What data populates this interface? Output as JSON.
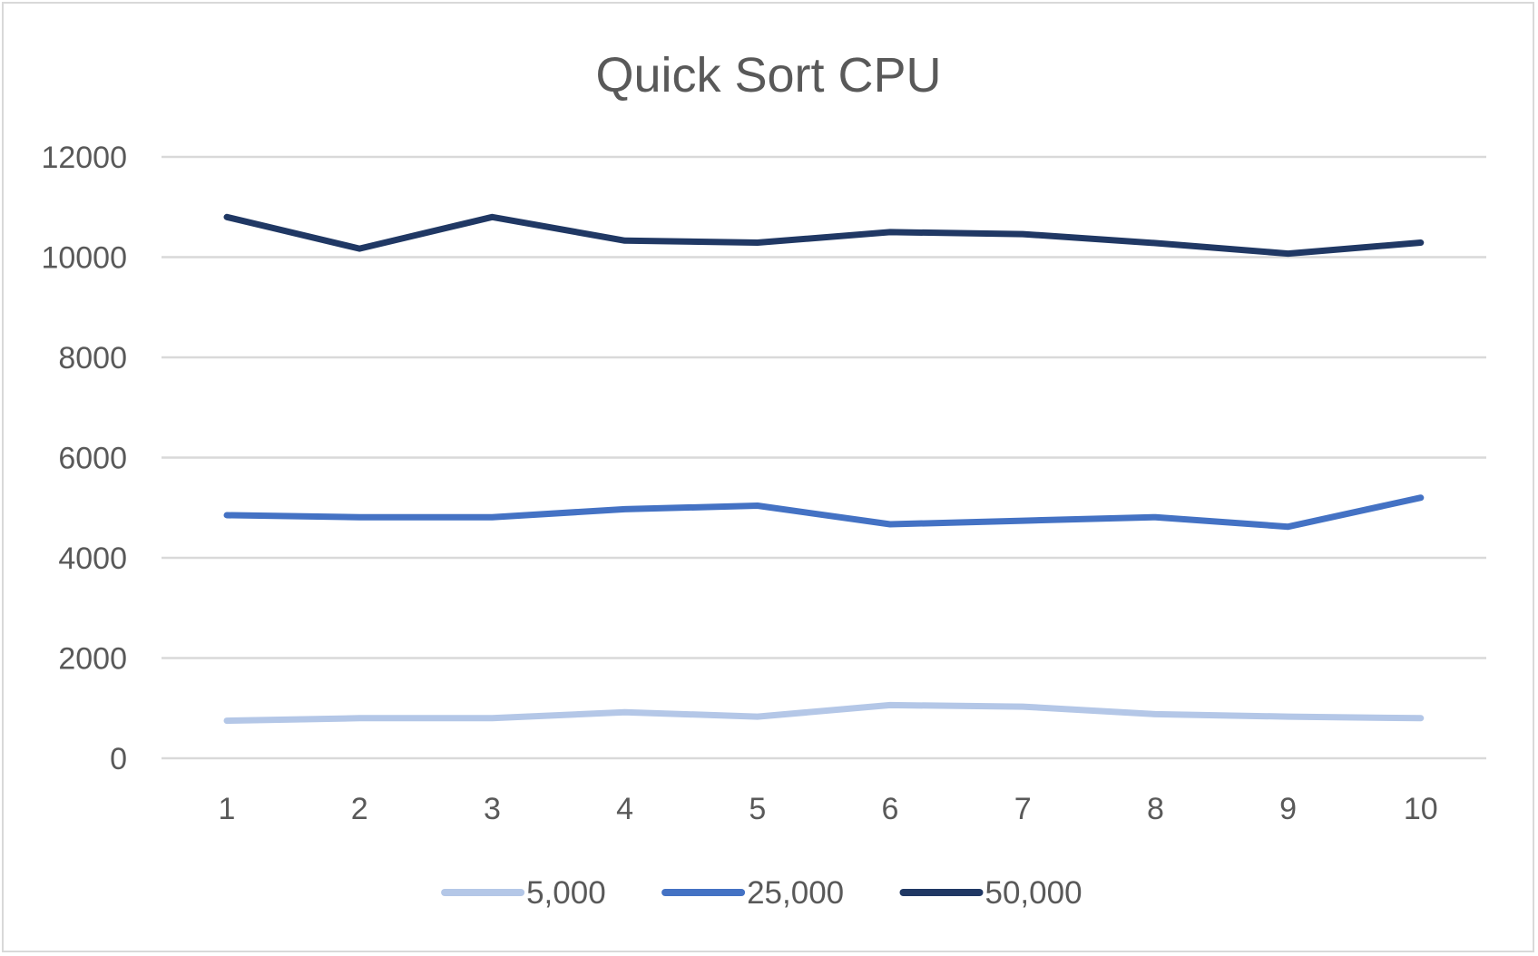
{
  "chart_data": {
    "type": "line",
    "title": "Quick Sort CPU",
    "xlabel": "",
    "ylabel": "",
    "x": [
      "1",
      "2",
      "3",
      "4",
      "5",
      "6",
      "7",
      "8",
      "9",
      "10"
    ],
    "ylim": [
      0,
      12000
    ],
    "yticks": [
      "0",
      "2000",
      "4000",
      "6000",
      "8000",
      "10000",
      "12000"
    ],
    "grid": "horizontal",
    "legend_position": "bottom",
    "series": [
      {
        "name": "5,000",
        "color": "#b4c7e7",
        "values": [
          750,
          800,
          800,
          920,
          830,
          1060,
          1030,
          880,
          830,
          800
        ]
      },
      {
        "name": "25,000",
        "color": "#4472c4",
        "values": [
          4850,
          4810,
          4810,
          4970,
          5040,
          4670,
          4740,
          4810,
          4620,
          5200
        ]
      },
      {
        "name": "50,000",
        "color": "#203864",
        "values": [
          10800,
          10170,
          10800,
          10330,
          10290,
          10500,
          10460,
          10280,
          10070,
          10290
        ]
      }
    ]
  }
}
